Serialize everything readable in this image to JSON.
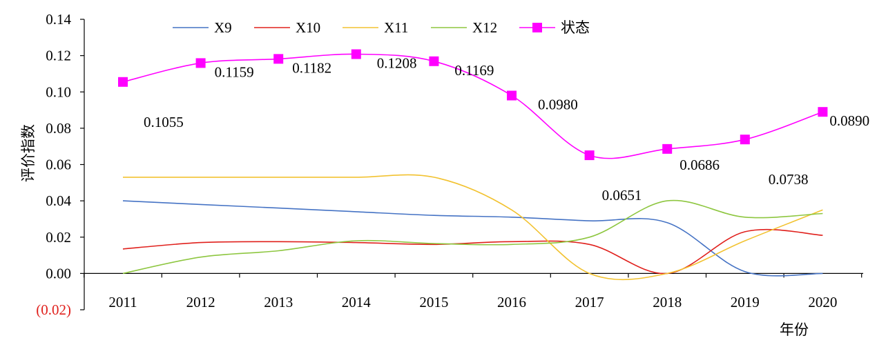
{
  "chart_data": {
    "type": "line",
    "title": "",
    "xlabel": "年份",
    "ylabel": "评价指数",
    "categories": [
      "2011",
      "2012",
      "2013",
      "2014",
      "2015",
      "2016",
      "2017",
      "2018",
      "2019",
      "2020"
    ],
    "ylim": [
      -0.02,
      0.14
    ],
    "y_ticks": [
      {
        "value": 0.14,
        "label": "0.14"
      },
      {
        "value": 0.12,
        "label": "0.12"
      },
      {
        "value": 0.1,
        "label": "0.10"
      },
      {
        "value": 0.08,
        "label": "0.08"
      },
      {
        "value": 0.06,
        "label": "0.06"
      },
      {
        "value": 0.04,
        "label": "0.04"
      },
      {
        "value": 0.02,
        "label": "0.02"
      },
      {
        "value": 0.0,
        "label": "0.00"
      },
      {
        "value": -0.02,
        "label": "(0.02)",
        "color": "#e0201c"
      }
    ],
    "legend_position": "top",
    "grid": false,
    "smooth": true,
    "series": [
      {
        "name": "X9",
        "color": "#4472c4",
        "marker": "none",
        "values": [
          0.04,
          0.038,
          0.036,
          0.034,
          0.032,
          0.031,
          0.029,
          0.028,
          0.001,
          0.0
        ]
      },
      {
        "name": "X10",
        "color": "#e0201c",
        "marker": "none",
        "values": [
          0.0135,
          0.017,
          0.0175,
          0.017,
          0.016,
          0.0175,
          0.016,
          0.0,
          0.023,
          0.021
        ]
      },
      {
        "name": "X11",
        "color": "#f2c230",
        "marker": "none",
        "values": [
          0.053,
          0.053,
          0.053,
          0.053,
          0.053,
          0.035,
          0.0,
          0.0,
          0.018,
          0.035
        ]
      },
      {
        "name": "X12",
        "color": "#8dc63f",
        "marker": "none",
        "values": [
          0.0,
          0.009,
          0.0125,
          0.018,
          0.0165,
          0.016,
          0.02,
          0.04,
          0.031,
          0.033
        ]
      },
      {
        "name": "状态",
        "color": "#ff00ff",
        "marker": "square",
        "values": [
          0.1055,
          0.1159,
          0.1182,
          0.1208,
          0.1169,
          0.098,
          0.0651,
          0.0686,
          0.0738,
          0.089
        ]
      }
    ],
    "data_labels": [
      {
        "category": "2011",
        "text": "0.1055"
      },
      {
        "category": "2012",
        "text": "0.1159"
      },
      {
        "category": "2013",
        "text": "0.1182"
      },
      {
        "category": "2014",
        "text": "0.1208"
      },
      {
        "category": "2015",
        "text": "0.1169"
      },
      {
        "category": "2016",
        "text": "0.0980"
      },
      {
        "category": "2017",
        "text": "0.0651"
      },
      {
        "category": "2018",
        "text": "0.0686"
      },
      {
        "category": "2019",
        "text": "0.0738"
      },
      {
        "category": "2020",
        "text": "0.0890"
      }
    ]
  }
}
